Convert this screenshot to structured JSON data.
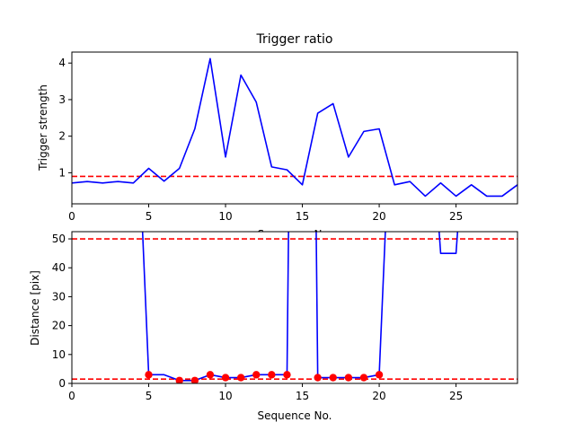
{
  "chart_data": [
    {
      "type": "line",
      "title": "Trigger ratio",
      "xlabel": "Sequence No.",
      "ylabel": "Trigger strength",
      "xlim": [
        0,
        29
      ],
      "ylim": [
        0.15,
        4.3
      ],
      "xticks": [
        0,
        5,
        10,
        15,
        20,
        25
      ],
      "yticks": [
        1,
        2,
        3,
        4
      ],
      "grid": false,
      "series": [
        {
          "color": "#0000ff",
          "x": [
            0,
            1,
            2,
            3,
            4,
            5,
            6,
            7,
            8,
            9,
            10,
            11,
            12,
            13,
            14,
            15,
            16,
            17,
            18,
            19,
            20,
            21,
            22,
            23,
            24,
            25,
            26,
            27,
            28,
            29
          ],
          "values": [
            0.72,
            0.76,
            0.72,
            0.76,
            0.72,
            1.12,
            0.77,
            1.12,
            2.2,
            4.12,
            1.43,
            3.67,
            2.93,
            1.16,
            1.08,
            0.67,
            2.63,
            2.89,
            1.43,
            2.13,
            2.2,
            0.67,
            0.76,
            0.36,
            0.72,
            0.36,
            0.67,
            0.36,
            0.36,
            0.67
          ]
        }
      ],
      "reference_lines": [
        {
          "y": 0.9,
          "color": "#ff0000",
          "style": "dashed"
        }
      ]
    },
    {
      "type": "line",
      "title": "",
      "xlabel": "Sequence No.",
      "ylabel": "Distance [pix]",
      "xlim": [
        0,
        29
      ],
      "ylim": [
        0,
        52.5
      ],
      "xticks": [
        0,
        5,
        10,
        15,
        20,
        25
      ],
      "yticks": [
        0,
        10,
        20,
        30,
        40,
        50
      ],
      "grid": false,
      "series": [
        {
          "color": "#0000ff",
          "x": [
            4.6,
            5,
            6,
            7,
            8,
            9,
            10,
            11,
            12,
            13,
            14,
            14.1
          ],
          "values": [
            52.5,
            3,
            3,
            1,
            1,
            3,
            2,
            2,
            3,
            3,
            3,
            52.5
          ]
        },
        {
          "color": "#0000ff",
          "x": [
            15.9,
            16,
            17,
            18,
            19,
            20,
            20.4
          ],
          "values": [
            52.5,
            2,
            2,
            2,
            2,
            3,
            52.5
          ]
        },
        {
          "color": "#0000ff",
          "x": [
            23.9,
            24,
            25,
            25.1
          ],
          "values": [
            52.5,
            45,
            45,
            52.5
          ]
        }
      ],
      "points": {
        "color": "#ff0000",
        "x": [
          5,
          7,
          8,
          9,
          10,
          11,
          12,
          13,
          14,
          16,
          17,
          18,
          19,
          20
        ],
        "values": [
          3,
          1,
          1,
          3,
          2,
          2,
          3,
          3,
          3,
          2,
          2,
          2,
          2,
          3
        ]
      },
      "reference_lines": [
        {
          "y": 50,
          "color": "#ff0000",
          "style": "dashed"
        },
        {
          "y": 1.5,
          "color": "#ff0000",
          "style": "dashed"
        }
      ]
    }
  ]
}
